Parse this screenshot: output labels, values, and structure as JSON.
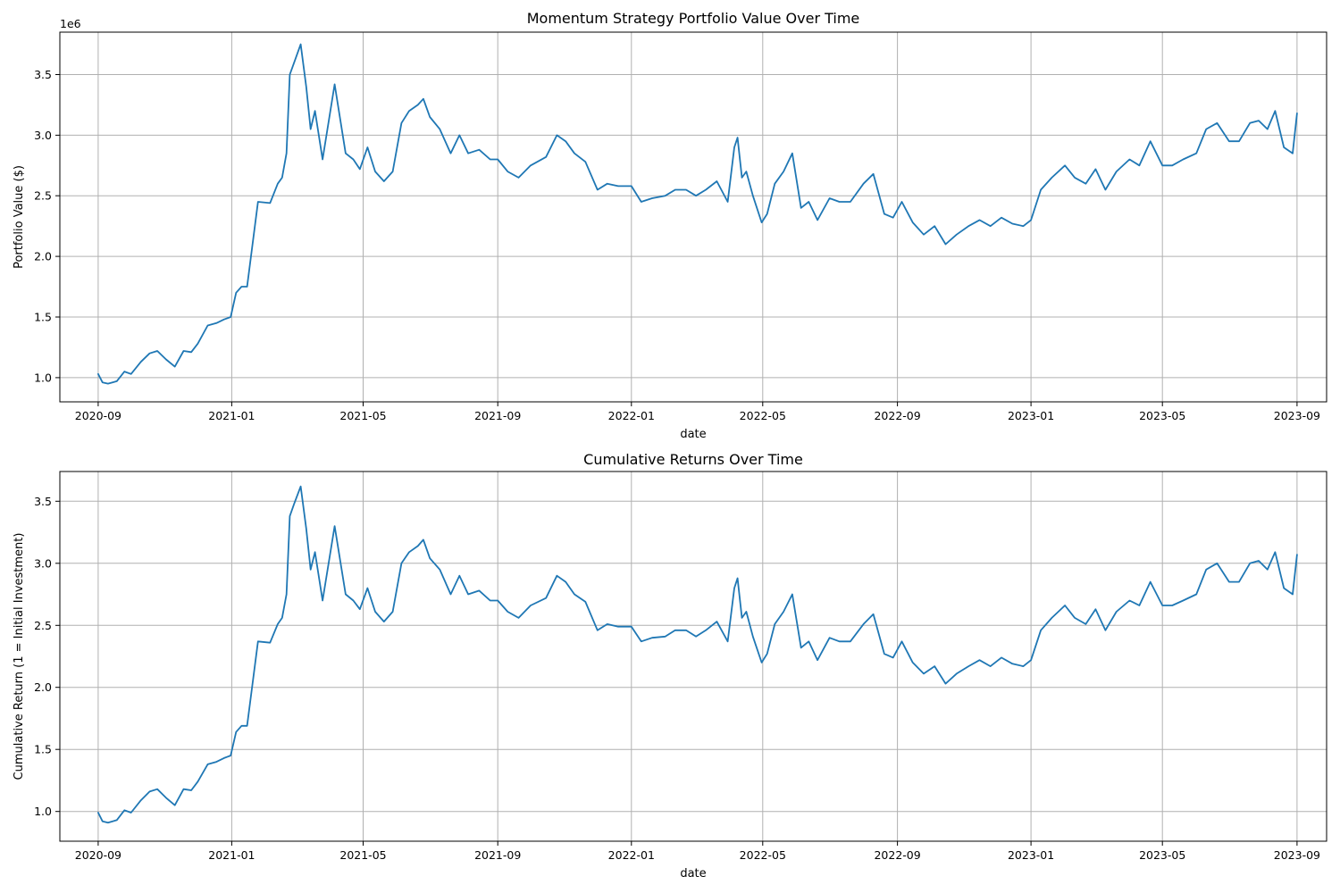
{
  "colors": {
    "line": "#1f77b4",
    "grid": "#b0b0b0"
  },
  "chart_data": [
    {
      "type": "line",
      "title": "Momentum Strategy Portfolio Value Over Time",
      "xlabel": "date",
      "ylabel": "Portfolio Value ($)",
      "offset_label": "1e6",
      "grid": true,
      "xlim": [
        "2020-07-28",
        "2023-09-28"
      ],
      "ylim": [
        0.8,
        3.85
      ],
      "x_ticks": [
        "2020-09",
        "2021-01",
        "2021-05",
        "2021-09",
        "2022-01",
        "2022-05",
        "2022-09",
        "2023-01",
        "2023-05",
        "2023-09"
      ],
      "y_ticks": [
        "1.0",
        "1.5",
        "2.0",
        "2.5",
        "3.0",
        "3.5"
      ],
      "series": [
        {
          "x": [
            "2020-09-01",
            "2020-09-05",
            "2020-09-10",
            "2020-09-18",
            "2020-09-25",
            "2020-10-01",
            "2020-10-10",
            "2020-10-18",
            "2020-10-25",
            "2020-11-02",
            "2020-11-10",
            "2020-11-18",
            "2020-11-25",
            "2020-12-01",
            "2020-12-10",
            "2020-12-18",
            "2020-12-25",
            "2020-12-31",
            "2021-01-05",
            "2021-01-10",
            "2021-01-15",
            "2021-01-25",
            "2021-02-05",
            "2021-02-12",
            "2021-02-16",
            "2021-02-20",
            "2021-02-23",
            "2021-02-27",
            "2021-03-05",
            "2021-03-10",
            "2021-03-14",
            "2021-03-18",
            "2021-03-25",
            "2021-04-05",
            "2021-04-15",
            "2021-04-22",
            "2021-04-28",
            "2021-05-05",
            "2021-05-12",
            "2021-05-20",
            "2021-05-28",
            "2021-06-05",
            "2021-06-12",
            "2021-06-20",
            "2021-06-25",
            "2021-07-01",
            "2021-07-10",
            "2021-07-20",
            "2021-07-28",
            "2021-08-05",
            "2021-08-15",
            "2021-08-25",
            "2021-09-01",
            "2021-09-10",
            "2021-09-20",
            "2021-10-01",
            "2021-10-15",
            "2021-10-25",
            "2021-11-02",
            "2021-11-10",
            "2021-11-20",
            "2021-12-01",
            "2021-12-10",
            "2021-12-20",
            "2022-01-01",
            "2022-01-10",
            "2022-01-20",
            "2022-02-01",
            "2022-02-10",
            "2022-02-20",
            "2022-03-01",
            "2022-03-10",
            "2022-03-20",
            "2022-03-30",
            "2022-04-05",
            "2022-04-08",
            "2022-04-12",
            "2022-04-16",
            "2022-04-22",
            "2022-04-30",
            "2022-05-05",
            "2022-05-12",
            "2022-05-20",
            "2022-05-28",
            "2022-06-05",
            "2022-06-12",
            "2022-06-20",
            "2022-07-01",
            "2022-07-10",
            "2022-07-20",
            "2022-08-01",
            "2022-08-10",
            "2022-08-20",
            "2022-08-28",
            "2022-09-05",
            "2022-09-15",
            "2022-09-25",
            "2022-10-05",
            "2022-10-15",
            "2022-10-25",
            "2022-11-05",
            "2022-11-15",
            "2022-11-25",
            "2022-12-05",
            "2022-12-15",
            "2022-12-25",
            "2023-01-01",
            "2023-01-10",
            "2023-01-20",
            "2023-02-01",
            "2023-02-10",
            "2023-02-20",
            "2023-03-01",
            "2023-03-10",
            "2023-03-20",
            "2023-04-01",
            "2023-04-10",
            "2023-04-20",
            "2023-05-01",
            "2023-05-10",
            "2023-05-20",
            "2023-06-01",
            "2023-06-10",
            "2023-06-20",
            "2023-07-01",
            "2023-07-10",
            "2023-07-20",
            "2023-07-28",
            "2023-08-05",
            "2023-08-12",
            "2023-08-20",
            "2023-08-28",
            "2023-09-01"
          ],
          "y": [
            1.03,
            0.96,
            0.95,
            0.97,
            1.05,
            1.03,
            1.13,
            1.2,
            1.22,
            1.15,
            1.09,
            1.22,
            1.21,
            1.28,
            1.43,
            1.45,
            1.48,
            1.5,
            1.7,
            1.75,
            1.75,
            2.45,
            2.44,
            2.6,
            2.65,
            2.85,
            3.5,
            3.6,
            3.75,
            3.4,
            3.05,
            3.2,
            2.8,
            3.42,
            2.85,
            2.8,
            2.72,
            2.9,
            2.7,
            2.62,
            2.7,
            3.1,
            3.2,
            3.25,
            3.3,
            3.15,
            3.05,
            2.85,
            3.0,
            2.85,
            2.88,
            2.8,
            2.8,
            2.7,
            2.65,
            2.75,
            2.82,
            3.0,
            2.95,
            2.85,
            2.78,
            2.55,
            2.6,
            2.58,
            2.58,
            2.45,
            2.48,
            2.5,
            2.55,
            2.55,
            2.5,
            2.55,
            2.62,
            2.45,
            2.9,
            2.98,
            2.65,
            2.7,
            2.5,
            2.28,
            2.35,
            2.6,
            2.7,
            2.85,
            2.4,
            2.45,
            2.3,
            2.48,
            2.45,
            2.45,
            2.6,
            2.68,
            2.35,
            2.32,
            2.45,
            2.28,
            2.18,
            2.25,
            2.1,
            2.18,
            2.25,
            2.3,
            2.25,
            2.32,
            2.27,
            2.25,
            2.3,
            2.55,
            2.65,
            2.75,
            2.65,
            2.6,
            2.72,
            2.55,
            2.7,
            2.8,
            2.75,
            2.95,
            2.75,
            2.75,
            2.8,
            2.85,
            3.05,
            3.1,
            2.95,
            2.95,
            3.1,
            3.12,
            3.05,
            3.2,
            2.9,
            2.85,
            3.18
          ]
        }
      ]
    },
    {
      "type": "line",
      "title": "Cumulative Returns Over Time",
      "xlabel": "date",
      "ylabel": "Cumulative Return (1 = Initial Investment)",
      "grid": true,
      "xlim": [
        "2020-07-28",
        "2023-09-28"
      ],
      "ylim": [
        0.76,
        3.74
      ],
      "x_ticks": [
        "2020-09",
        "2021-01",
        "2021-05",
        "2021-09",
        "2022-01",
        "2022-05",
        "2022-09",
        "2023-01",
        "2023-05",
        "2023-09"
      ],
      "y_ticks": [
        "1.0",
        "1.5",
        "2.0",
        "2.5",
        "3.0",
        "3.5"
      ],
      "series": [
        {
          "x": [
            "2020-09-01",
            "2020-09-05",
            "2020-09-10",
            "2020-09-18",
            "2020-09-25",
            "2020-10-01",
            "2020-10-10",
            "2020-10-18",
            "2020-10-25",
            "2020-11-02",
            "2020-11-10",
            "2020-11-18",
            "2020-11-25",
            "2020-12-01",
            "2020-12-10",
            "2020-12-18",
            "2020-12-25",
            "2020-12-31",
            "2021-01-05",
            "2021-01-10",
            "2021-01-15",
            "2021-01-25",
            "2021-02-05",
            "2021-02-12",
            "2021-02-16",
            "2021-02-20",
            "2021-02-23",
            "2021-02-27",
            "2021-03-05",
            "2021-03-10",
            "2021-03-14",
            "2021-03-18",
            "2021-03-25",
            "2021-04-05",
            "2021-04-15",
            "2021-04-22",
            "2021-04-28",
            "2021-05-05",
            "2021-05-12",
            "2021-05-20",
            "2021-05-28",
            "2021-06-05",
            "2021-06-12",
            "2021-06-20",
            "2021-06-25",
            "2021-07-01",
            "2021-07-10",
            "2021-07-20",
            "2021-07-28",
            "2021-08-05",
            "2021-08-15",
            "2021-08-25",
            "2021-09-01",
            "2021-09-10",
            "2021-09-20",
            "2021-10-01",
            "2021-10-15",
            "2021-10-25",
            "2021-11-02",
            "2021-11-10",
            "2021-11-20",
            "2021-12-01",
            "2021-12-10",
            "2021-12-20",
            "2022-01-01",
            "2022-01-10",
            "2022-01-20",
            "2022-02-01",
            "2022-02-10",
            "2022-02-20",
            "2022-03-01",
            "2022-03-10",
            "2022-03-20",
            "2022-03-30",
            "2022-04-05",
            "2022-04-08",
            "2022-04-12",
            "2022-04-16",
            "2022-04-22",
            "2022-04-30",
            "2022-05-05",
            "2022-05-12",
            "2022-05-20",
            "2022-05-28",
            "2022-06-05",
            "2022-06-12",
            "2022-06-20",
            "2022-07-01",
            "2022-07-10",
            "2022-07-20",
            "2022-08-01",
            "2022-08-10",
            "2022-08-20",
            "2022-08-28",
            "2022-09-05",
            "2022-09-15",
            "2022-09-25",
            "2022-10-05",
            "2022-10-15",
            "2022-10-25",
            "2022-11-05",
            "2022-11-15",
            "2022-11-25",
            "2022-12-05",
            "2022-12-15",
            "2022-12-25",
            "2023-01-01",
            "2023-01-10",
            "2023-01-20",
            "2023-02-01",
            "2023-02-10",
            "2023-02-20",
            "2023-03-01",
            "2023-03-10",
            "2023-03-20",
            "2023-04-01",
            "2023-04-10",
            "2023-04-20",
            "2023-05-01",
            "2023-05-10",
            "2023-05-20",
            "2023-06-01",
            "2023-06-10",
            "2023-06-20",
            "2023-07-01",
            "2023-07-10",
            "2023-07-20",
            "2023-07-28",
            "2023-08-05",
            "2023-08-12",
            "2023-08-20",
            "2023-08-28",
            "2023-09-01"
          ],
          "y": [
            0.99,
            0.92,
            0.91,
            0.93,
            1.01,
            0.99,
            1.09,
            1.16,
            1.18,
            1.11,
            1.05,
            1.18,
            1.17,
            1.24,
            1.38,
            1.4,
            1.43,
            1.45,
            1.64,
            1.69,
            1.69,
            2.37,
            2.36,
            2.51,
            2.56,
            2.75,
            3.38,
            3.48,
            3.62,
            3.28,
            2.95,
            3.09,
            2.7,
            3.3,
            2.75,
            2.7,
            2.63,
            2.8,
            2.61,
            2.53,
            2.61,
            3.0,
            3.09,
            3.14,
            3.19,
            3.04,
            2.95,
            2.75,
            2.9,
            2.75,
            2.78,
            2.7,
            2.7,
            2.61,
            2.56,
            2.66,
            2.72,
            2.9,
            2.85,
            2.75,
            2.69,
            2.46,
            2.51,
            2.49,
            2.49,
            2.37,
            2.4,
            2.41,
            2.46,
            2.46,
            2.41,
            2.46,
            2.53,
            2.37,
            2.8,
            2.88,
            2.56,
            2.61,
            2.41,
            2.2,
            2.27,
            2.51,
            2.61,
            2.75,
            2.32,
            2.37,
            2.22,
            2.4,
            2.37,
            2.37,
            2.51,
            2.59,
            2.27,
            2.24,
            2.37,
            2.2,
            2.11,
            2.17,
            2.03,
            2.11,
            2.17,
            2.22,
            2.17,
            2.24,
            2.19,
            2.17,
            2.22,
            2.46,
            2.56,
            2.66,
            2.56,
            2.51,
            2.63,
            2.46,
            2.61,
            2.7,
            2.66,
            2.85,
            2.66,
            2.66,
            2.7,
            2.75,
            2.95,
            3.0,
            2.85,
            2.85,
            3.0,
            3.02,
            2.95,
            3.09,
            2.8,
            2.75,
            3.07
          ]
        }
      ]
    }
  ]
}
